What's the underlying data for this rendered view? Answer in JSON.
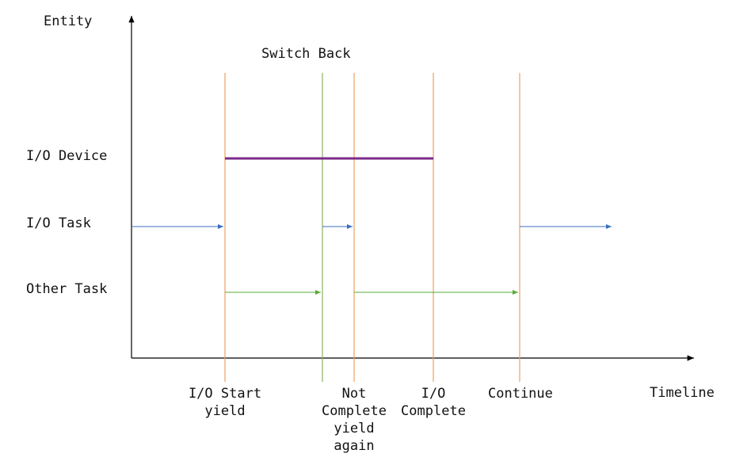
{
  "colors": {
    "axis": "#000000",
    "event_line": "#f0a060",
    "event_line_green": "#8db060",
    "io_task_arrow": "#3a6fc0",
    "other_task_arrow": "#5aaa38",
    "io_device_bar": "#7a2a8a"
  },
  "diagram": {
    "y_axis_label": "Entity",
    "x_axis_label": "Timeline",
    "top_label": "Switch Back",
    "rows": [
      {
        "id": "io_device",
        "label": "I/O Device"
      },
      {
        "id": "io_task",
        "label": "I/O Task"
      },
      {
        "id": "other_task",
        "label": "Other Task"
      }
    ],
    "events": [
      {
        "id": "io_start",
        "lines": [
          "I/O Start",
          "yield"
        ]
      },
      {
        "id": "switch_back",
        "lines": []
      },
      {
        "id": "not_complete",
        "lines": [
          "Not",
          "Complete",
          "yield",
          "again"
        ]
      },
      {
        "id": "io_complete",
        "lines": [
          "I/O",
          "Complete"
        ]
      },
      {
        "id": "continue",
        "lines": [
          "Continue"
        ]
      }
    ]
  }
}
